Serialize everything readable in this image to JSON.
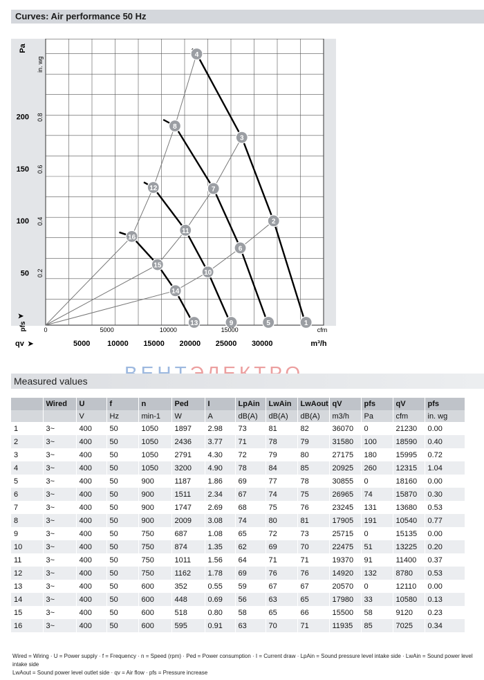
{
  "header": {
    "title": "Curves: Air performance 50 Hz"
  },
  "chart_data": {
    "type": "line",
    "xlabel_primary": "m³/h",
    "xlabel_secondary": "cfm",
    "ylabel_primary": "Pa",
    "ylabel_secondary": "in. wg",
    "y_symbol": "pfs",
    "x_symbol": "qv",
    "xlim": [
      0,
      38500
    ],
    "ylim": [
      0,
      260
    ],
    "x_ticks_m3h": [
      "5000",
      "10000",
      "15000",
      "20000",
      "25000",
      "30000"
    ],
    "x_ticks_cfm": [
      "0",
      "5000",
      "10000",
      "15000",
      "cfm"
    ],
    "y_ticks_pa": [
      "50",
      "100",
      "150",
      "200"
    ],
    "y_ticks_inwg": [
      "0.2",
      "0.4",
      "0.6",
      "0.8",
      "in. wg"
    ],
    "grid": true,
    "speed_curves": [
      {
        "n": 1050,
        "points": [
          [
            20300,
            265
          ],
          [
            20925,
            260
          ],
          [
            27175,
            180
          ],
          [
            31580,
            100
          ],
          [
            36070,
            0
          ]
        ]
      },
      {
        "n": 900,
        "points": [
          [
            16300,
            197
          ],
          [
            17905,
            191
          ],
          [
            23245,
            131
          ],
          [
            26965,
            74
          ],
          [
            30855,
            0
          ]
        ]
      },
      {
        "n": 750,
        "points": [
          [
            13600,
            137
          ],
          [
            14920,
            132
          ],
          [
            19370,
            91
          ],
          [
            22475,
            51
          ],
          [
            25715,
            0
          ]
        ]
      },
      {
        "n": 600,
        "points": [
          [
            10200,
            89
          ],
          [
            11935,
            85
          ],
          [
            15500,
            58
          ],
          [
            17980,
            33
          ],
          [
            20570,
            0
          ]
        ]
      }
    ],
    "system_curves": [
      {
        "points": [
          [
            0,
            0
          ],
          [
            11935,
            85
          ],
          [
            14920,
            132
          ],
          [
            17905,
            191
          ],
          [
            20925,
            260
          ]
        ]
      },
      {
        "points": [
          [
            0,
            0
          ],
          [
            15500,
            58
          ],
          [
            19370,
            91
          ],
          [
            23245,
            131
          ],
          [
            27175,
            180
          ]
        ]
      },
      {
        "points": [
          [
            0,
            0
          ],
          [
            17980,
            33
          ],
          [
            22475,
            51
          ],
          [
            26965,
            74
          ],
          [
            31580,
            100
          ]
        ]
      }
    ],
    "operating_points": [
      {
        "label": "1",
        "x": 36070,
        "y": 0
      },
      {
        "label": "2",
        "x": 31580,
        "y": 100
      },
      {
        "label": "3",
        "x": 27175,
        "y": 180
      },
      {
        "label": "4",
        "x": 20925,
        "y": 260
      },
      {
        "label": "5",
        "x": 30855,
        "y": 0
      },
      {
        "label": "6",
        "x": 26965,
        "y": 74
      },
      {
        "label": "7",
        "x": 23245,
        "y": 131
      },
      {
        "label": "8",
        "x": 17905,
        "y": 191
      },
      {
        "label": "9",
        "x": 25715,
        "y": 0
      },
      {
        "label": "10",
        "x": 22475,
        "y": 51
      },
      {
        "label": "11",
        "x": 19370,
        "y": 91
      },
      {
        "label": "12",
        "x": 14920,
        "y": 132
      },
      {
        "label": "13",
        "x": 20570,
        "y": 0
      },
      {
        "label": "14",
        "x": 17980,
        "y": 33
      },
      {
        "label": "15",
        "x": 15500,
        "y": 58
      },
      {
        "label": "16",
        "x": 11935,
        "y": 85
      }
    ]
  },
  "watermark": {
    "a": "ВЕНТ",
    "b": "ЭЛЕКТРО"
  },
  "measured": {
    "title": "Measured values",
    "headers": [
      "",
      "Wired",
      "U",
      "f",
      "n",
      "Ped",
      "I",
      "LpAin",
      "LwAin",
      "LwAout",
      "qV",
      "pfs",
      "qV",
      "pfs"
    ],
    "units": [
      "",
      "",
      "V",
      "Hz",
      "min-1",
      "W",
      "A",
      "dB(A)",
      "dB(A)",
      "dB(A)",
      "m3/h",
      "Pa",
      "cfm",
      "in. wg"
    ],
    "rows": [
      [
        "1",
        "3~",
        "400",
        "50",
        "1050",
        "1897",
        "2.98",
        "73",
        "81",
        "82",
        "36070",
        "0",
        "21230",
        "0.00"
      ],
      [
        "2",
        "3~",
        "400",
        "50",
        "1050",
        "2436",
        "3.77",
        "71",
        "78",
        "79",
        "31580",
        "100",
        "18590",
        "0.40"
      ],
      [
        "3",
        "3~",
        "400",
        "50",
        "1050",
        "2791",
        "4.30",
        "72",
        "79",
        "80",
        "27175",
        "180",
        "15995",
        "0.72"
      ],
      [
        "4",
        "3~",
        "400",
        "50",
        "1050",
        "3200",
        "4.90",
        "78",
        "84",
        "85",
        "20925",
        "260",
        "12315",
        "1.04"
      ],
      [
        "5",
        "3~",
        "400",
        "50",
        "900",
        "1187",
        "1.86",
        "69",
        "77",
        "78",
        "30855",
        "0",
        "18160",
        "0.00"
      ],
      [
        "6",
        "3~",
        "400",
        "50",
        "900",
        "1511",
        "2.34",
        "67",
        "74",
        "75",
        "26965",
        "74",
        "15870",
        "0.30"
      ],
      [
        "7",
        "3~",
        "400",
        "50",
        "900",
        "1747",
        "2.69",
        "68",
        "75",
        "76",
        "23245",
        "131",
        "13680",
        "0.53"
      ],
      [
        "8",
        "3~",
        "400",
        "50",
        "900",
        "2009",
        "3.08",
        "74",
        "80",
        "81",
        "17905",
        "191",
        "10540",
        "0.77"
      ],
      [
        "9",
        "3~",
        "400",
        "50",
        "750",
        "687",
        "1.08",
        "65",
        "72",
        "73",
        "25715",
        "0",
        "15135",
        "0.00"
      ],
      [
        "10",
        "3~",
        "400",
        "50",
        "750",
        "874",
        "1.35",
        "62",
        "69",
        "70",
        "22475",
        "51",
        "13225",
        "0.20"
      ],
      [
        "11",
        "3~",
        "400",
        "50",
        "750",
        "1011",
        "1.56",
        "64",
        "71",
        "71",
        "19370",
        "91",
        "11400",
        "0.37"
      ],
      [
        "12",
        "3~",
        "400",
        "50",
        "750",
        "1162",
        "1.78",
        "69",
        "76",
        "76",
        "14920",
        "132",
        "8780",
        "0.53"
      ],
      [
        "13",
        "3~",
        "400",
        "50",
        "600",
        "352",
        "0.55",
        "59",
        "67",
        "67",
        "20570",
        "0",
        "12110",
        "0.00"
      ],
      [
        "14",
        "3~",
        "400",
        "50",
        "600",
        "448",
        "0.69",
        "56",
        "63",
        "65",
        "17980",
        "33",
        "10580",
        "0.13"
      ],
      [
        "15",
        "3~",
        "400",
        "50",
        "600",
        "518",
        "0.80",
        "58",
        "65",
        "66",
        "15500",
        "58",
        "9120",
        "0.23"
      ],
      [
        "16",
        "3~",
        "400",
        "50",
        "600",
        "595",
        "0.91",
        "63",
        "70",
        "71",
        "11935",
        "85",
        "7025",
        "0.34"
      ]
    ]
  },
  "footnote": {
    "line1": "Wired = Wiring · U = Power supply · f = Frequency · n = Speed (rpm) · Ped = Power consumption · I = Current draw · LpAin = Sound pressure level intake side · LwAin = Sound power level intake side",
    "line2": "LwAout = Sound power level outlet side · qv = Air flow · pfs = Pressure increase"
  }
}
